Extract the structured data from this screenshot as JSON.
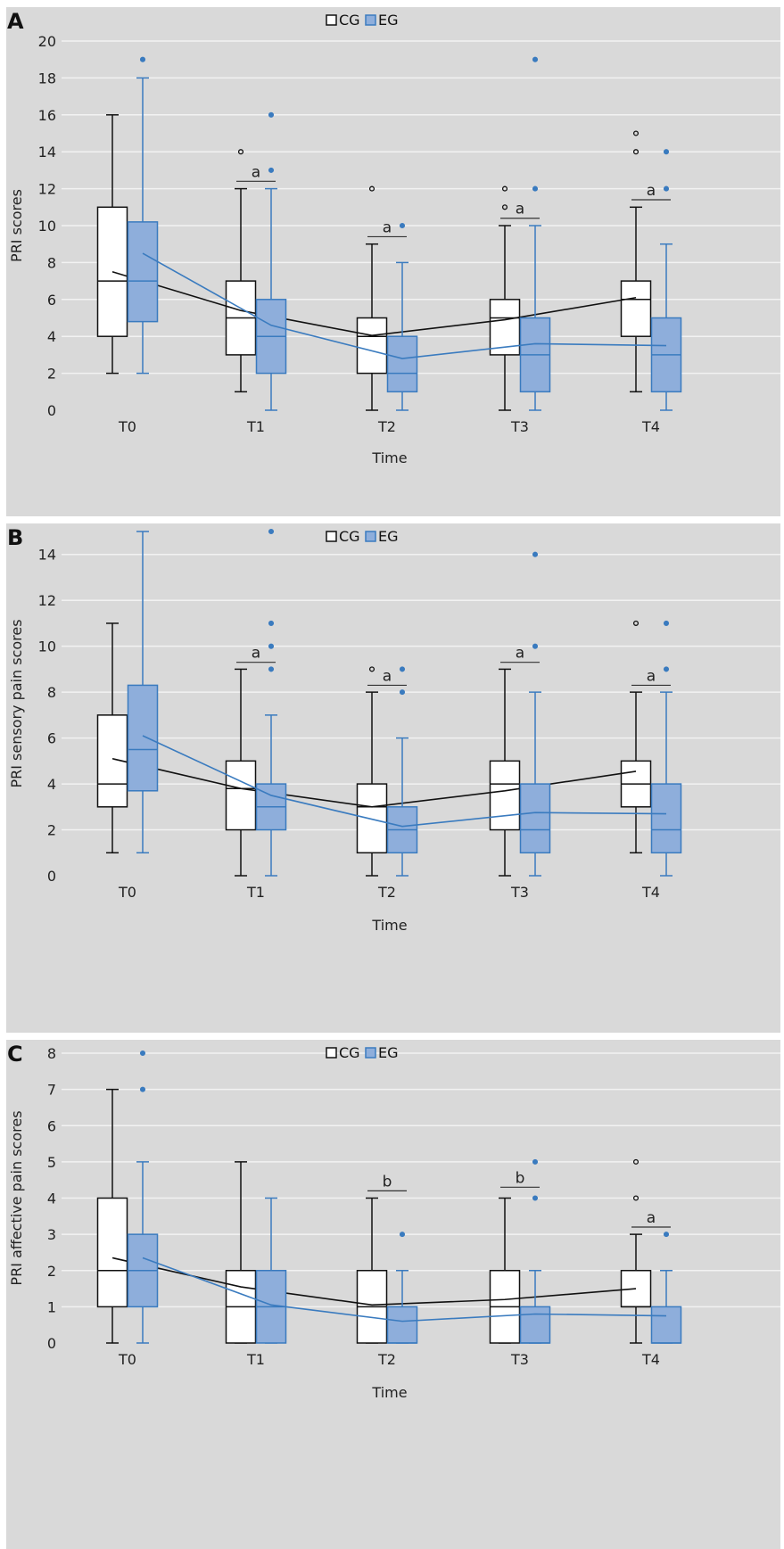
{
  "legend": [
    "CG",
    "EG"
  ],
  "colors": {
    "cg_fill": "#ffffff",
    "cg_line": "#111111",
    "eg_fill": "#8eaedb",
    "eg_line": "#3a7bbf",
    "grid": "#f2f2f2",
    "background": "#d9d9d9"
  },
  "chart_data": [
    {
      "type": "box",
      "panel_label": "A",
      "xlabel": "Time",
      "ylabel": "PRI scores",
      "categories": [
        "T0",
        "T1",
        "T2",
        "T3",
        "T4"
      ],
      "ylim": [
        0,
        20
      ],
      "yticks": [
        0,
        2,
        4,
        6,
        8,
        10,
        12,
        14,
        16,
        18,
        20
      ],
      "legend_position": "top-center",
      "grid": true,
      "series": [
        {
          "name": "CG",
          "boxes": [
            {
              "min": 2,
              "q1": 4,
              "median": 7,
              "q3": 11,
              "max": 16,
              "mean": 7.5,
              "outliers": []
            },
            {
              "min": 1,
              "q1": 3,
              "median": 5,
              "q3": 7,
              "max": 12,
              "mean": 5.4,
              "outliers": [
                14
              ]
            },
            {
              "min": 0,
              "q1": 2,
              "median": 4,
              "q3": 5,
              "max": 9,
              "mean": 4.05,
              "outliers": [
                12
              ]
            },
            {
              "min": 0,
              "q1": 3,
              "median": 5,
              "q3": 6,
              "max": 10,
              "mean": 4.9,
              "outliers": [
                11,
                12
              ]
            },
            {
              "min": 1,
              "q1": 4,
              "median": 6,
              "q3": 7,
              "max": 11,
              "mean": 6.1,
              "outliers": [
                14,
                15
              ]
            }
          ]
        },
        {
          "name": "EG",
          "boxes": [
            {
              "min": 2,
              "q1": 4.8,
              "median": 7,
              "q3": 10.2,
              "max": 18,
              "mean": 8.5,
              "outliers": [
                19
              ]
            },
            {
              "min": 0,
              "q1": 2,
              "median": 4,
              "q3": 6,
              "max": 12,
              "mean": 4.6,
              "outliers": [
                13,
                16
              ]
            },
            {
              "min": 0,
              "q1": 1,
              "median": 2,
              "q3": 4,
              "max": 8,
              "mean": 2.8,
              "outliers": [
                10
              ]
            },
            {
              "min": 0,
              "q1": 1,
              "median": 3,
              "q3": 5,
              "max": 10,
              "mean": 3.6,
              "outliers": [
                12,
                19
              ]
            },
            {
              "min": 0,
              "q1": 1,
              "median": 3,
              "q3": 5,
              "max": 9,
              "mean": 3.5,
              "outliers": [
                12,
                14
              ]
            }
          ]
        }
      ],
      "annotations": [
        {
          "category": 1,
          "label": "a",
          "y": 12.4
        },
        {
          "category": 2,
          "label": "a",
          "y": 9.4
        },
        {
          "category": 3,
          "label": "a",
          "y": 10.4
        },
        {
          "category": 4,
          "label": "a",
          "y": 11.4
        }
      ]
    },
    {
      "type": "box",
      "panel_label": "B",
      "xlabel": "Time",
      "ylabel": "PRI sensory pain scores",
      "categories": [
        "T0",
        "T1",
        "T2",
        "T3",
        "T4"
      ],
      "ylim": [
        0,
        15
      ],
      "yticks": [
        0,
        2,
        4,
        6,
        8,
        10,
        12,
        14
      ],
      "legend_position": "top-center",
      "grid": true,
      "series": [
        {
          "name": "CG",
          "boxes": [
            {
              "min": 1,
              "q1": 3,
              "median": 4,
              "q3": 7,
              "max": 11,
              "mean": 5.1,
              "outliers": []
            },
            {
              "min": 0,
              "q1": 2,
              "median": 3.8,
              "q3": 5,
              "max": 9,
              "mean": 3.8,
              "outliers": []
            },
            {
              "min": 0,
              "q1": 1,
              "median": 3,
              "q3": 4,
              "max": 8,
              "mean": 3.0,
              "outliers": [
                9
              ]
            },
            {
              "min": 0,
              "q1": 2,
              "median": 4,
              "q3": 5,
              "max": 9,
              "mean": 3.7,
              "outliers": []
            },
            {
              "min": 1,
              "q1": 3,
              "median": 4,
              "q3": 5,
              "max": 8,
              "mean": 4.55,
              "outliers": [
                11
              ]
            }
          ]
        },
        {
          "name": "EG",
          "boxes": [
            {
              "min": 1,
              "q1": 3.7,
              "median": 5.5,
              "q3": 8.3,
              "max": 15,
              "mean": 6.1,
              "outliers": []
            },
            {
              "min": 0,
              "q1": 2,
              "median": 3,
              "q3": 4,
              "max": 7,
              "mean": 3.5,
              "outliers": [
                9,
                10,
                11,
                15
              ]
            },
            {
              "min": 0,
              "q1": 1,
              "median": 2,
              "q3": 3,
              "max": 6,
              "mean": 2.15,
              "outliers": [
                8,
                9
              ]
            },
            {
              "min": 0,
              "q1": 1,
              "median": 2,
              "q3": 4,
              "max": 8,
              "mean": 2.75,
              "outliers": [
                10,
                14
              ]
            },
            {
              "min": 0,
              "q1": 1,
              "median": 2,
              "q3": 4,
              "max": 8,
              "mean": 2.7,
              "outliers": [
                9,
                11
              ]
            }
          ]
        }
      ],
      "annotations": [
        {
          "category": 1,
          "label": "a",
          "y": 9.3
        },
        {
          "category": 2,
          "label": "a",
          "y": 8.3
        },
        {
          "category": 3,
          "label": "a",
          "y": 9.3
        },
        {
          "category": 4,
          "label": "a",
          "y": 8.3
        }
      ]
    },
    {
      "type": "box",
      "panel_label": "C",
      "xlabel": "Time",
      "ylabel": "PRI affective pain scores",
      "categories": [
        "T0",
        "T1",
        "T2",
        "T3",
        "T4"
      ],
      "ylim": [
        0,
        8
      ],
      "yticks": [
        0,
        1,
        2,
        3,
        4,
        5,
        6,
        7,
        8
      ],
      "legend_position": "top-center",
      "grid": true,
      "series": [
        {
          "name": "CG",
          "boxes": [
            {
              "min": 0,
              "q1": 1,
              "median": 2,
              "q3": 4,
              "max": 7,
              "mean": 2.35,
              "outliers": []
            },
            {
              "min": 0,
              "q1": 0,
              "median": 1,
              "q3": 2,
              "max": 5,
              "mean": 1.55,
              "outliers": []
            },
            {
              "min": 0,
              "q1": 0,
              "median": 1,
              "q3": 2,
              "max": 4,
              "mean": 1.05,
              "outliers": []
            },
            {
              "min": 0,
              "q1": 0,
              "median": 1,
              "q3": 2,
              "max": 4,
              "mean": 1.2,
              "outliers": []
            },
            {
              "min": 0,
              "q1": 1,
              "median": 1,
              "q3": 2,
              "max": 3,
              "mean": 1.5,
              "outliers": [
                4,
                5
              ]
            }
          ]
        },
        {
          "name": "EG",
          "boxes": [
            {
              "min": 0,
              "q1": 1,
              "median": 2,
              "q3": 3,
              "max": 5,
              "mean": 2.35,
              "outliers": [
                7,
                8
              ]
            },
            {
              "min": 0,
              "q1": 0,
              "median": 1,
              "q3": 2,
              "max": 4,
              "mean": 1.05,
              "outliers": []
            },
            {
              "min": 0,
              "q1": 0,
              "median": 0,
              "q3": 1,
              "max": 2,
              "mean": 0.6,
              "outliers": [
                3
              ]
            },
            {
              "min": 0,
              "q1": 0,
              "median": 0,
              "q3": 1,
              "max": 2,
              "mean": 0.8,
              "outliers": [
                4,
                5
              ]
            },
            {
              "min": 0,
              "q1": 0,
              "median": 0,
              "q3": 1,
              "max": 2,
              "mean": 0.75,
              "outliers": [
                3
              ]
            }
          ]
        }
      ],
      "annotations": [
        {
          "category": 2,
          "label": "b",
          "y": 4.2
        },
        {
          "category": 3,
          "label": "b",
          "y": 4.3
        },
        {
          "category": 4,
          "label": "a",
          "y": 3.2
        }
      ]
    }
  ]
}
